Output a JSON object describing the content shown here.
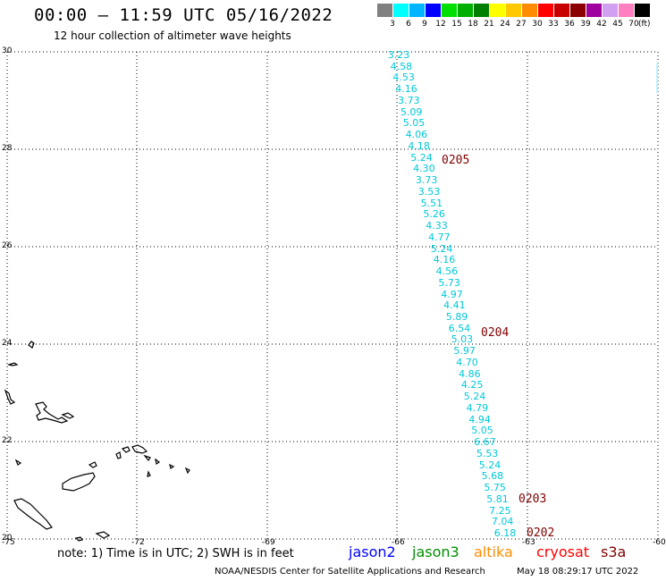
{
  "title": "00:00 – 11:59 UTC 05/16/2022",
  "subtitle": "12 hour collection of altimeter wave heights",
  "color_scale": {
    "labels": [
      "3",
      "6",
      "9",
      "12",
      "15",
      "18",
      "21",
      "24",
      "27",
      "30",
      "33",
      "36",
      "39",
      "42",
      "45",
      "70"
    ],
    "colors": [
      "#808080",
      "#00ffff",
      "#00b4ff",
      "#0000ff",
      "#00e000",
      "#00b000",
      "#008000",
      "#ffff00",
      "#ffc800",
      "#ff8c00",
      "#ff0000",
      "#c80000",
      "#8b0000",
      "#a000a0",
      "#d2a0f0",
      "#ff80c0",
      "#000000"
    ],
    "unit": "(ft)"
  },
  "axes": {
    "lon_labels": [
      "-75",
      "-72",
      "-69",
      "-66",
      "-63",
      "-60"
    ],
    "lat_labels": [
      "30",
      "28",
      "26",
      "24",
      "22",
      "20"
    ]
  },
  "wave_track": {
    "color": "#00c8d8",
    "values": [
      "3.23",
      "4.58",
      "4.53",
      "4.16",
      "3.73",
      "5.09",
      "5.05",
      "4.06",
      "4.18",
      "5.24",
      "4.30",
      "3.73",
      "3.53",
      "5.51",
      "5.26",
      "4.33",
      "4.77",
      "5.24",
      "4.16",
      "4.56",
      "5.73",
      "4.97",
      "4.41",
      "5.89",
      "6.54",
      "5.03",
      "5.97",
      "4.70",
      "4.86",
      "4.25",
      "5.24",
      "4.79",
      "4.94",
      "5.05",
      "6.67",
      "5.53",
      "5.24",
      "5.68",
      "5.75",
      "5.81",
      "7.25",
      "7.04",
      "6.18"
    ]
  },
  "passes": [
    {
      "label": "0205"
    },
    {
      "label": "0204"
    },
    {
      "label": "0203"
    },
    {
      "label": "0202"
    }
  ],
  "note": "note: 1) Time is in UTC; 2) SWH is in feet",
  "satellites": [
    {
      "name": "jason2",
      "color": "#0000ff"
    },
    {
      "name": "jason3",
      "color": "#009000"
    },
    {
      "name": "altika",
      "color": "#ff8c00"
    },
    {
      "name": "cryosat",
      "color": "#ff0000"
    },
    {
      "name": "s3a",
      "color": "#800000"
    }
  ],
  "credit": "NOAA/NESDIS Center for Satellite Applications and Research",
  "timestamp": "May 18 08:29:17 UTC 2022"
}
